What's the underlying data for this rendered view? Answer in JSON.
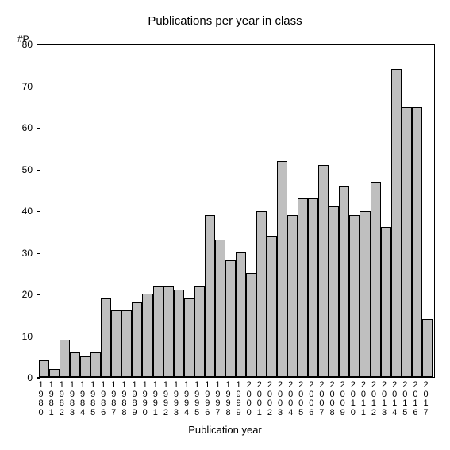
{
  "chart": {
    "type": "bar",
    "title": "Publications per year in class",
    "title_fontsize": 15,
    "yaxis_label": "#P",
    "xaxis_label": "Publication year",
    "label_fontsize": 13,
    "ylim": [
      0,
      80
    ],
    "ytick_step": 10,
    "yticks": [
      0,
      10,
      20,
      30,
      40,
      50,
      60,
      70,
      80
    ],
    "background_color": "#ffffff",
    "bar_color": "#bfbfbf",
    "bar_border_color": "#000000",
    "axis_color": "#000000",
    "years": [
      "1980",
      "1981",
      "1982",
      "1983",
      "1984",
      "1985",
      "1986",
      "1987",
      "1988",
      "1989",
      "1990",
      "1991",
      "1992",
      "1993",
      "1994",
      "1995",
      "1996",
      "1997",
      "1998",
      "1999",
      "2000",
      "2001",
      "2002",
      "2003",
      "2004",
      "2005",
      "2006",
      "2007",
      "2008",
      "2009",
      "2010",
      "2011",
      "2012",
      "2013",
      "2014",
      "2015",
      "2016",
      "2017"
    ],
    "values": [
      4,
      2,
      9,
      6,
      5,
      6,
      19,
      16,
      16,
      18,
      20,
      22,
      22,
      21,
      19,
      22,
      39,
      33,
      28,
      30,
      25,
      40,
      34,
      52,
      39,
      43,
      43,
      51,
      41,
      46,
      39,
      40,
      47,
      36,
      74,
      65,
      65,
      14
    ]
  }
}
